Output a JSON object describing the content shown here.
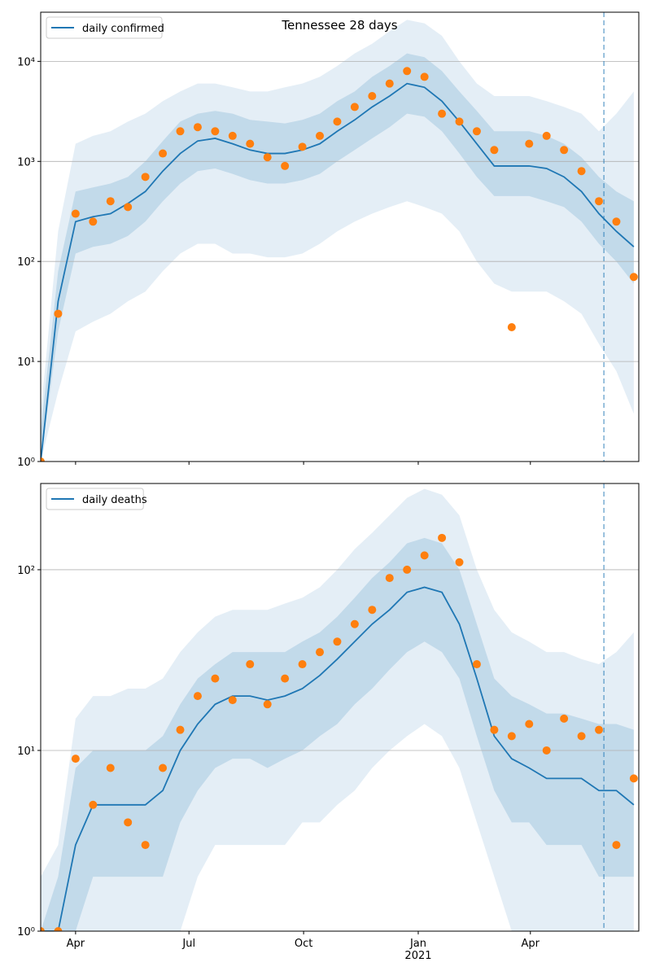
{
  "chart_data": [
    {
      "type": "line",
      "title": "Tennessee 28 days",
      "log_y": true,
      "grid": true,
      "legend": "upper left",
      "xlim": [
        0,
        480
      ],
      "ylim": [
        1,
        31000
      ],
      "yticks": [
        {
          "value": 1,
          "label": "10⁰"
        },
        {
          "value": 10,
          "label": "10¹"
        },
        {
          "value": 100,
          "label": "10²"
        },
        {
          "value": 1000,
          "label": "10³"
        },
        {
          "value": 10000,
          "label": "10⁴"
        }
      ],
      "x": [
        0,
        14,
        28,
        42,
        56,
        70,
        84,
        98,
        112,
        126,
        140,
        154,
        168,
        182,
        196,
        210,
        224,
        238,
        252,
        266,
        280,
        294,
        308,
        322,
        336,
        350,
        364,
        378,
        392,
        406,
        420,
        434,
        448,
        462,
        476
      ],
      "series": [
        {
          "name": "daily confirmed",
          "color": "#1f77b4",
          "values": [
            1,
            40,
            250,
            280,
            300,
            380,
            500,
            800,
            1200,
            1600,
            1700,
            1500,
            1300,
            1200,
            1200,
            1300,
            1500,
            2000,
            2600,
            3500,
            4500,
            6000,
            5500,
            4000,
            2500,
            1500,
            900,
            900,
            900,
            850,
            700,
            500,
            300,
            200,
            140
          ]
        }
      ],
      "points": {
        "color": "#ff7f0e",
        "values": [
          1,
          30,
          300,
          250,
          400,
          350,
          700,
          1200,
          2000,
          2200,
          2000,
          1800,
          1500,
          1100,
          900,
          1400,
          1800,
          2500,
          3500,
          4500,
          6000,
          8000,
          7000,
          3000,
          2500,
          2000,
          1300,
          22,
          1500,
          1800,
          1300,
          800,
          400,
          250,
          70
        ]
      },
      "bands": [
        {
          "color": "#1f77b4",
          "lower": [
            1,
            5,
            20,
            25,
            30,
            40,
            50,
            80,
            120,
            150,
            150,
            120,
            120,
            110,
            110,
            120,
            150,
            200,
            250,
            300,
            350,
            400,
            350,
            300,
            200,
            100,
            60,
            50,
            50,
            50,
            40,
            30,
            15,
            8,
            3
          ],
          "upper": [
            3,
            200,
            1500,
            1800,
            2000,
            2500,
            3000,
            4000,
            5000,
            6000,
            6000,
            5500,
            5000,
            5000,
            5500,
            6000,
            7000,
            9000,
            12000,
            15000,
            20000,
            26000,
            24000,
            18000,
            10000,
            6000,
            4500,
            4500,
            4500,
            4000,
            3500,
            3000,
            2000,
            3000,
            5000
          ]
        },
        {
          "color": "#1f77b4",
          "lower": [
            1,
            20,
            120,
            140,
            150,
            180,
            250,
            400,
            600,
            800,
            850,
            750,
            650,
            600,
            600,
            650,
            750,
            1000,
            1300,
            1700,
            2200,
            3000,
            2800,
            2000,
            1200,
            700,
            450,
            450,
            450,
            400,
            350,
            250,
            150,
            100,
            60
          ],
          "upper": [
            2,
            80,
            500,
            550,
            600,
            700,
            1000,
            1600,
            2500,
            3000,
            3200,
            3000,
            2600,
            2500,
            2400,
            2600,
            3000,
            4000,
            5000,
            7000,
            9000,
            12000,
            11000,
            8000,
            5000,
            3200,
            2000,
            2000,
            2000,
            1800,
            1500,
            1100,
            700,
            500,
            400
          ]
        }
      ],
      "vline": {
        "x": 452,
        "color": "#1f77b4"
      }
    },
    {
      "type": "line",
      "log_y": true,
      "grid": true,
      "legend": "upper left",
      "xlim": [
        0,
        480
      ],
      "ylim": [
        1,
        300
      ],
      "yticks": [
        {
          "value": 1,
          "label": "10⁰"
        },
        {
          "value": 10,
          "label": "10¹"
        },
        {
          "value": 100,
          "label": "10²"
        }
      ],
      "xticks": [
        {
          "value": 28,
          "label": "Apr"
        },
        {
          "value": 119,
          "label": "Jul"
        },
        {
          "value": 211,
          "label": "Oct"
        },
        {
          "value": 303,
          "label": "Jan"
        },
        {
          "value": 393,
          "label": "Apr"
        }
      ],
      "x_sublabel": "2021",
      "x": [
        0,
        14,
        28,
        42,
        56,
        70,
        84,
        98,
        112,
        126,
        140,
        154,
        168,
        182,
        196,
        210,
        224,
        238,
        252,
        266,
        280,
        294,
        308,
        322,
        336,
        350,
        364,
        378,
        392,
        406,
        420,
        434,
        448,
        462,
        476
      ],
      "series": [
        {
          "name": "daily deaths",
          "color": "#1f77b4",
          "values": [
            1,
            1,
            3,
            5,
            5,
            5,
            5,
            6,
            10,
            14,
            18,
            20,
            20,
            19,
            20,
            22,
            26,
            32,
            40,
            50,
            60,
            75,
            80,
            75,
            50,
            25,
            12,
            9,
            8,
            7,
            7,
            7,
            6,
            6,
            5
          ]
        }
      ],
      "points": {
        "color": "#ff7f0e",
        "values": [
          1,
          1,
          9,
          5,
          8,
          4,
          3,
          8,
          13,
          20,
          25,
          19,
          30,
          18,
          25,
          30,
          35,
          40,
          50,
          60,
          90,
          100,
          120,
          150,
          110,
          30,
          13,
          12,
          14,
          10,
          15,
          12,
          13,
          3,
          7
        ]
      },
      "bands": [
        {
          "color": "#1f77b4",
          "lower": [
            1,
            1,
            1,
            1,
            1,
            1,
            1,
            1,
            1,
            2,
            3,
            3,
            3,
            3,
            3,
            4,
            4,
            5,
            6,
            8,
            10,
            12,
            14,
            12,
            8,
            4,
            2,
            1,
            1,
            1,
            1,
            1,
            1,
            1,
            1
          ],
          "upper": [
            2,
            3,
            15,
            20,
            20,
            22,
            22,
            25,
            35,
            45,
            55,
            60,
            60,
            60,
            65,
            70,
            80,
            100,
            130,
            160,
            200,
            250,
            280,
            260,
            200,
            100,
            60,
            45,
            40,
            35,
            35,
            32,
            30,
            35,
            45
          ]
        },
        {
          "color": "#1f77b4",
          "lower": [
            1,
            1,
            1,
            2,
            2,
            2,
            2,
            2,
            4,
            6,
            8,
            9,
            9,
            8,
            9,
            10,
            12,
            14,
            18,
            22,
            28,
            35,
            40,
            35,
            25,
            12,
            6,
            4,
            4,
            3,
            3,
            3,
            2,
            2,
            2
          ],
          "upper": [
            1,
            2,
            8,
            10,
            10,
            10,
            10,
            12,
            18,
            25,
            30,
            35,
            35,
            35,
            35,
            40,
            45,
            55,
            70,
            90,
            110,
            140,
            150,
            140,
            100,
            50,
            25,
            20,
            18,
            16,
            16,
            15,
            14,
            14,
            13
          ]
        }
      ],
      "vline": {
        "x": 452,
        "color": "#1f77b4"
      }
    }
  ]
}
